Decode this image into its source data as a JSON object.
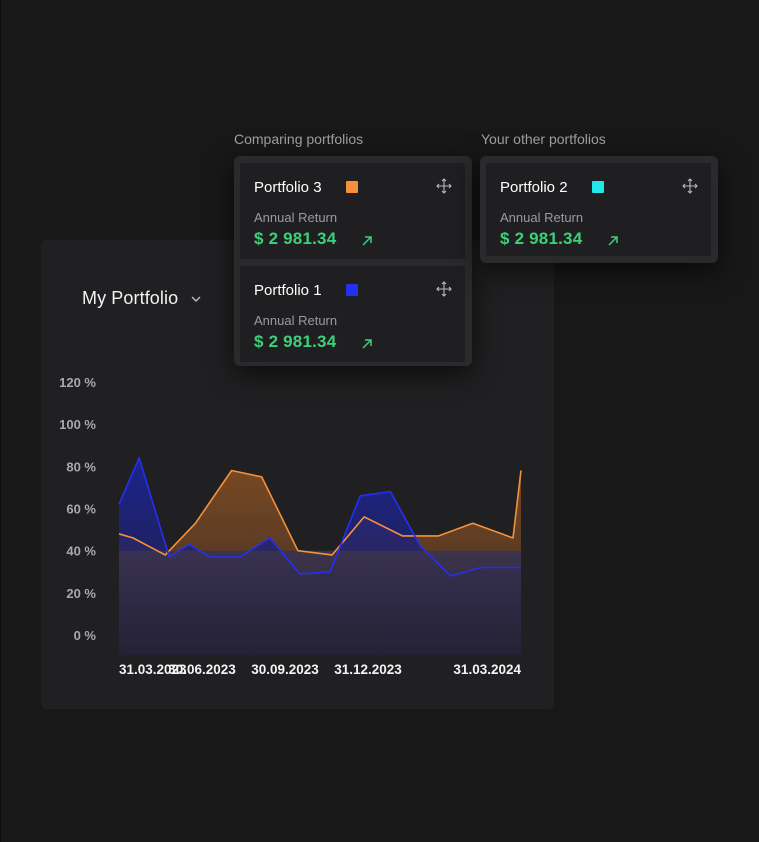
{
  "comparing_label": "Comparing portfolios",
  "other_label": "Your other portfolios",
  "main_card": {
    "title": "My Portfolio",
    "chevron_icon": "chevron-down-icon"
  },
  "compare_tiles": [
    {
      "name": "Portfolio 3",
      "color": "#f5913a",
      "metric_label": "Annual Return",
      "metric_value": "$ 2 981.34",
      "trend_icon": "arrow-up-right-icon",
      "move_icon": "move-icon"
    },
    {
      "name": "Portfolio 1",
      "color": "#2430f0",
      "metric_label": "Annual Return",
      "metric_value": "$ 2 981.34",
      "trend_icon": "arrow-up-right-icon",
      "move_icon": "move-icon"
    }
  ],
  "other_tiles": [
    {
      "name": "Portfolio 2",
      "color": "#22e8e6",
      "metric_label": "Annual Return",
      "metric_value": "$ 2 981.34",
      "trend_icon": "arrow-up-right-icon",
      "move_icon": "move-icon"
    }
  ],
  "chart_data": {
    "type": "area",
    "title": "My Portfolio",
    "xlabel": "",
    "ylabel": "",
    "ylim": [
      0,
      120
    ],
    "y_ticks": [
      "120 %",
      "100 %",
      "80 %",
      "60 %",
      "40 %",
      "20 %",
      "0 %"
    ],
    "y_tick_values": [
      120,
      100,
      80,
      60,
      40,
      20,
      0
    ],
    "x_tick_labels": [
      "31.03.2023",
      "30.06.2023",
      "30.09.2023",
      "31.12.2023",
      "31.03.2024"
    ],
    "x_range": [
      0,
      20
    ],
    "series": [
      {
        "name": "Portfolio 1",
        "color": "#2430f0",
        "x": [
          0,
          1,
          2.5,
          3.5,
          4.5,
          6,
          7.5,
          9,
          10.5,
          12,
          13.5,
          15,
          16.5,
          18,
          19.5,
          20
        ],
        "values": [
          62,
          84,
          37,
          43,
          37,
          37,
          46,
          29,
          30,
          66,
          68,
          42,
          28,
          32,
          32,
          32
        ]
      },
      {
        "name": "Portfolio 3",
        "color": "#f5913a",
        "x": [
          0,
          0.7,
          2.3,
          3.8,
          5.6,
          7.1,
          8.9,
          10.6,
          12.2,
          14.1,
          15.9,
          17.6,
          19.6,
          20
        ],
        "values": [
          48,
          46,
          38,
          53,
          78,
          75,
          40,
          38,
          56,
          47,
          47,
          53,
          46,
          78
        ]
      },
      {
        "name": "My Portfolio",
        "color": "#5a4f7a",
        "x": [
          0,
          20
        ],
        "values": [
          40,
          40
        ]
      }
    ]
  }
}
